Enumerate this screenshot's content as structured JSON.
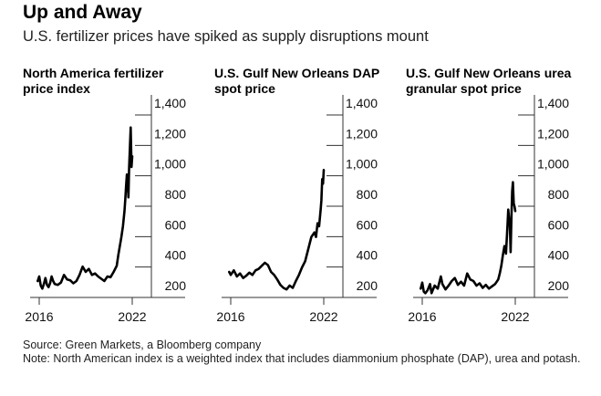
{
  "title": "Up and Away",
  "subtitle": "U.S. fertilizer prices have spiked as supply disruptions mount",
  "footer": {
    "source": "Source: Green Markets, a Bloomberg company",
    "note": "Note: North American index is a weighted index that includes diammonium phosphate (DAP), urea and potash."
  },
  "colors": {
    "line": "#000000",
    "axis": "#333333",
    "text": "#000000"
  },
  "chart_data": [
    {
      "type": "line",
      "title_lines": [
        "North America fertilizer",
        "price index"
      ],
      "xlabel": "",
      "ylabel": "",
      "x_ticks": [
        "2016",
        "2022"
      ],
      "y_ticks": [
        200,
        400,
        600,
        800,
        1000,
        1200,
        1400
      ],
      "y_tick_labels": [
        "200",
        "400",
        "600",
        "800",
        "1,000",
        "1,200",
        "1,400"
      ],
      "ylim": [
        100,
        1450
      ],
      "xlim": [
        2015.8,
        2023.4
      ],
      "series": [
        {
          "name": "North America fertilizer price index",
          "x": [
            2015.9,
            2016.0,
            2016.1,
            2016.2,
            2016.3,
            2016.4,
            2016.5,
            2016.6,
            2016.7,
            2016.8,
            2016.9,
            2017.0,
            2017.2,
            2017.4,
            2017.6,
            2017.8,
            2018.0,
            2018.2,
            2018.4,
            2018.6,
            2018.8,
            2019.0,
            2019.2,
            2019.4,
            2019.6,
            2019.8,
            2020.0,
            2020.2,
            2020.4,
            2020.6,
            2020.8,
            2021.0,
            2021.1,
            2021.2,
            2021.3,
            2021.4,
            2021.5,
            2021.55,
            2021.6,
            2021.65,
            2021.7,
            2021.75,
            2021.8,
            2021.85,
            2021.9,
            2021.95,
            2022.0
          ],
          "y": [
            230,
            260,
            200,
            180,
            210,
            250,
            205,
            190,
            215,
            260,
            230,
            210,
            205,
            220,
            270,
            240,
            235,
            215,
            230,
            270,
            325,
            290,
            310,
            270,
            280,
            260,
            245,
            230,
            260,
            255,
            290,
            330,
            400,
            460,
            520,
            590,
            690,
            760,
            850,
            930,
            910,
            780,
            980,
            1100,
            1240,
            980,
            1050
          ]
        }
      ]
    },
    {
      "type": "line",
      "title_lines": [
        "U.S. Gulf New Orleans DAP",
        "spot price"
      ],
      "xlabel": "",
      "ylabel": "",
      "x_ticks": [
        "2016",
        "2022"
      ],
      "y_ticks": [
        200,
        400,
        600,
        800,
        1000,
        1200,
        1400
      ],
      "y_tick_labels": [
        "200",
        "400",
        "600",
        "800",
        "1,000",
        "1,200",
        "1,400"
      ],
      "ylim": [
        100,
        1450
      ],
      "xlim": [
        2015.8,
        2023.4
      ],
      "series": [
        {
          "name": "U.S. Gulf New Orleans DAP spot price",
          "x": [
            2015.9,
            2016.0,
            2016.2,
            2016.4,
            2016.6,
            2016.8,
            2017.0,
            2017.2,
            2017.4,
            2017.6,
            2017.8,
            2018.0,
            2018.2,
            2018.4,
            2018.6,
            2018.8,
            2019.0,
            2019.2,
            2019.4,
            2019.6,
            2019.8,
            2020.0,
            2020.2,
            2020.4,
            2020.6,
            2020.8,
            2021.0,
            2021.2,
            2021.4,
            2021.5,
            2021.6,
            2021.7,
            2021.8,
            2021.85,
            2021.9,
            2021.95,
            2022.0
          ],
          "y": [
            290,
            270,
            300,
            260,
            280,
            250,
            265,
            285,
            270,
            300,
            310,
            330,
            350,
            335,
            290,
            270,
            240,
            205,
            185,
            175,
            200,
            185,
            230,
            270,
            320,
            360,
            440,
            520,
            550,
            520,
            610,
            590,
            700,
            760,
            900,
            870,
            960
          ]
        }
      ]
    },
    {
      "type": "line",
      "title_lines": [
        "U.S. Gulf New Orleans urea",
        "granular spot price"
      ],
      "xlabel": "",
      "ylabel": "",
      "x_ticks": [
        "2016",
        "2022"
      ],
      "y_ticks": [
        200,
        400,
        600,
        800,
        1000,
        1200,
        1400
      ],
      "y_tick_labels": [
        "200",
        "400",
        "600",
        "800",
        "1,000",
        "1,200",
        "1,400"
      ],
      "ylim": [
        80,
        1450
      ],
      "xlim": [
        2015.8,
        2023.4
      ],
      "series": [
        {
          "name": "U.S. Gulf New Orleans urea granular spot price",
          "x": [
            2015.9,
            2016.0,
            2016.1,
            2016.2,
            2016.35,
            2016.5,
            2016.6,
            2016.8,
            2017.0,
            2017.2,
            2017.3,
            2017.5,
            2017.7,
            2017.9,
            2018.1,
            2018.3,
            2018.5,
            2018.7,
            2018.9,
            2019.1,
            2019.3,
            2019.5,
            2019.7,
            2019.9,
            2020.1,
            2020.3,
            2020.5,
            2020.7,
            2020.9,
            2021.0,
            2021.1,
            2021.2,
            2021.3,
            2021.4,
            2021.5,
            2021.55,
            2021.6,
            2021.65,
            2021.7,
            2021.75,
            2021.8,
            2021.85,
            2021.9,
            2021.95,
            2022.0
          ],
          "y": [
            180,
            220,
            160,
            150,
            170,
            210,
            150,
            200,
            180,
            260,
            210,
            175,
            200,
            230,
            250,
            205,
            225,
            200,
            280,
            240,
            230,
            200,
            215,
            185,
            205,
            180,
            195,
            210,
            240,
            280,
            330,
            400,
            460,
            410,
            600,
            700,
            640,
            590,
            420,
            650,
            820,
            880,
            740,
            720,
            690
          ]
        }
      ]
    }
  ]
}
